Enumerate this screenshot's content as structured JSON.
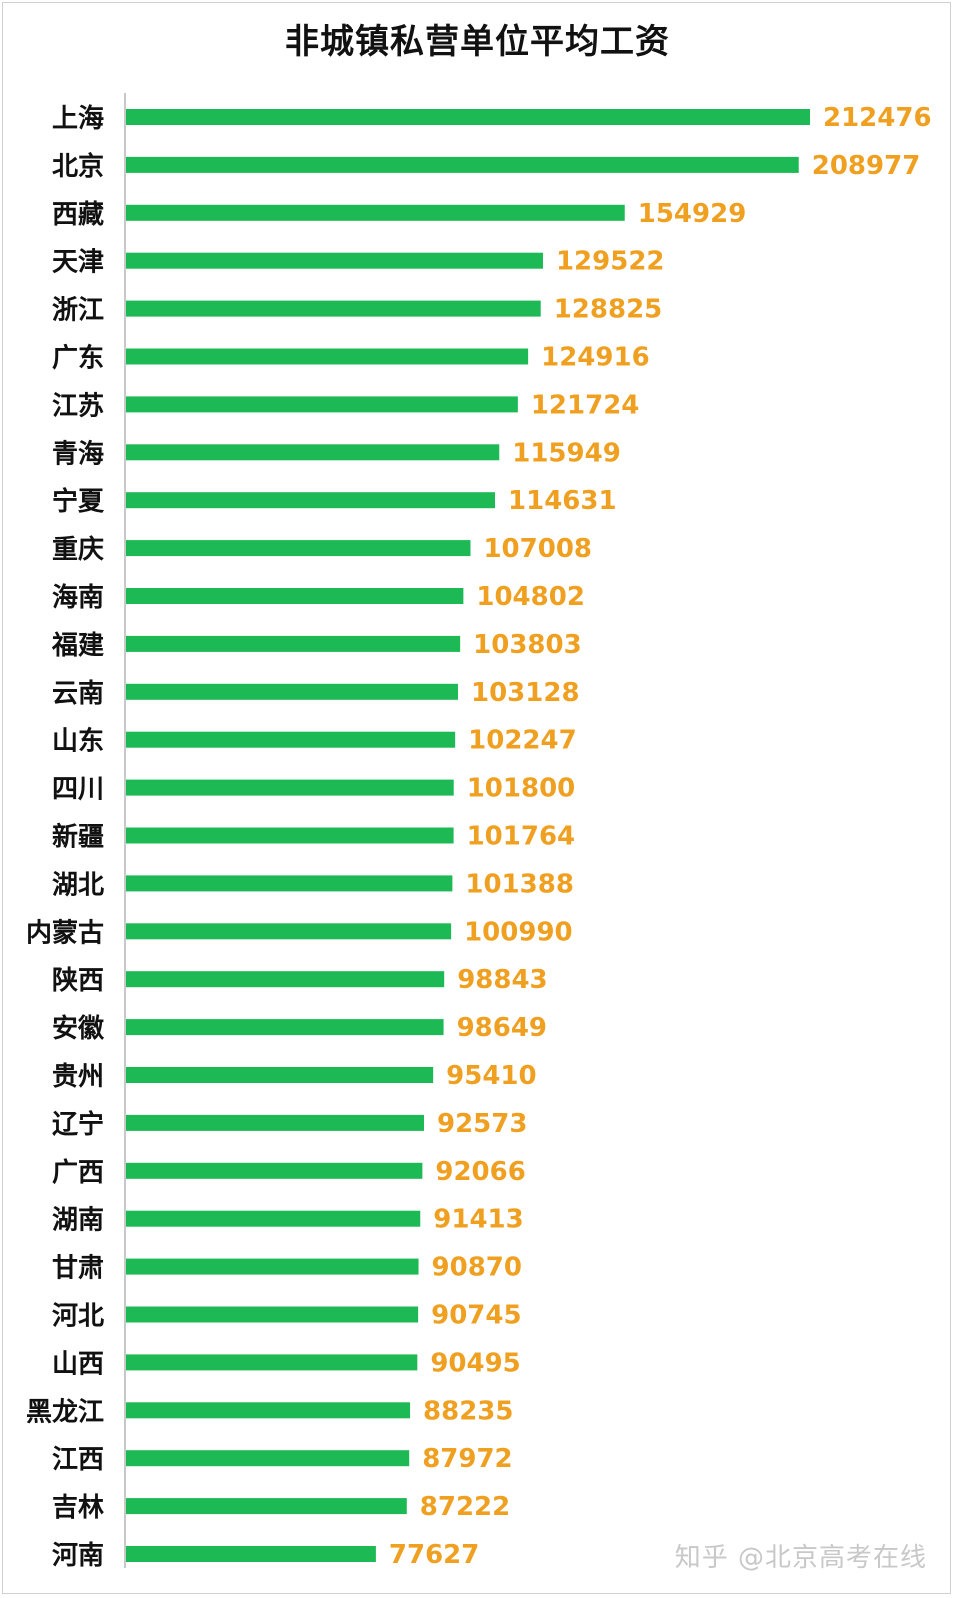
{
  "chart_data": {
    "type": "bar",
    "orientation": "horizontal",
    "title": "非城镇私营单位平均工资",
    "xlabel": "",
    "ylabel": "",
    "categories": [
      "上海",
      "北京",
      "西藏",
      "天津",
      "浙江",
      "广东",
      "江苏",
      "青海",
      "宁夏",
      "重庆",
      "海南",
      "福建",
      "云南",
      "山东",
      "四川",
      "新疆",
      "湖北",
      "内蒙古",
      "陕西",
      "安徽",
      "贵州",
      "辽宁",
      "广西",
      "湖南",
      "甘肃",
      "河北",
      "山西",
      "黑龙江",
      "江西",
      "吉林",
      "河南"
    ],
    "values": [
      212476,
      208977,
      154929,
      129522,
      128825,
      124916,
      121724,
      115949,
      114631,
      107008,
      104802,
      103803,
      103128,
      102247,
      101800,
      101764,
      101388,
      100990,
      98843,
      98649,
      95410,
      92573,
      92066,
      91413,
      90870,
      90745,
      90495,
      88235,
      87972,
      87222,
      77627
    ],
    "xlim": [
      0,
      212476
    ],
    "grid": false,
    "legend": "none",
    "colors": {
      "bar": "#1db954",
      "value_label": "#f0a020",
      "category_label": "#111111",
      "axis_line": "#c8c8c8"
    }
  },
  "watermark": "知乎 @北京高考在线"
}
